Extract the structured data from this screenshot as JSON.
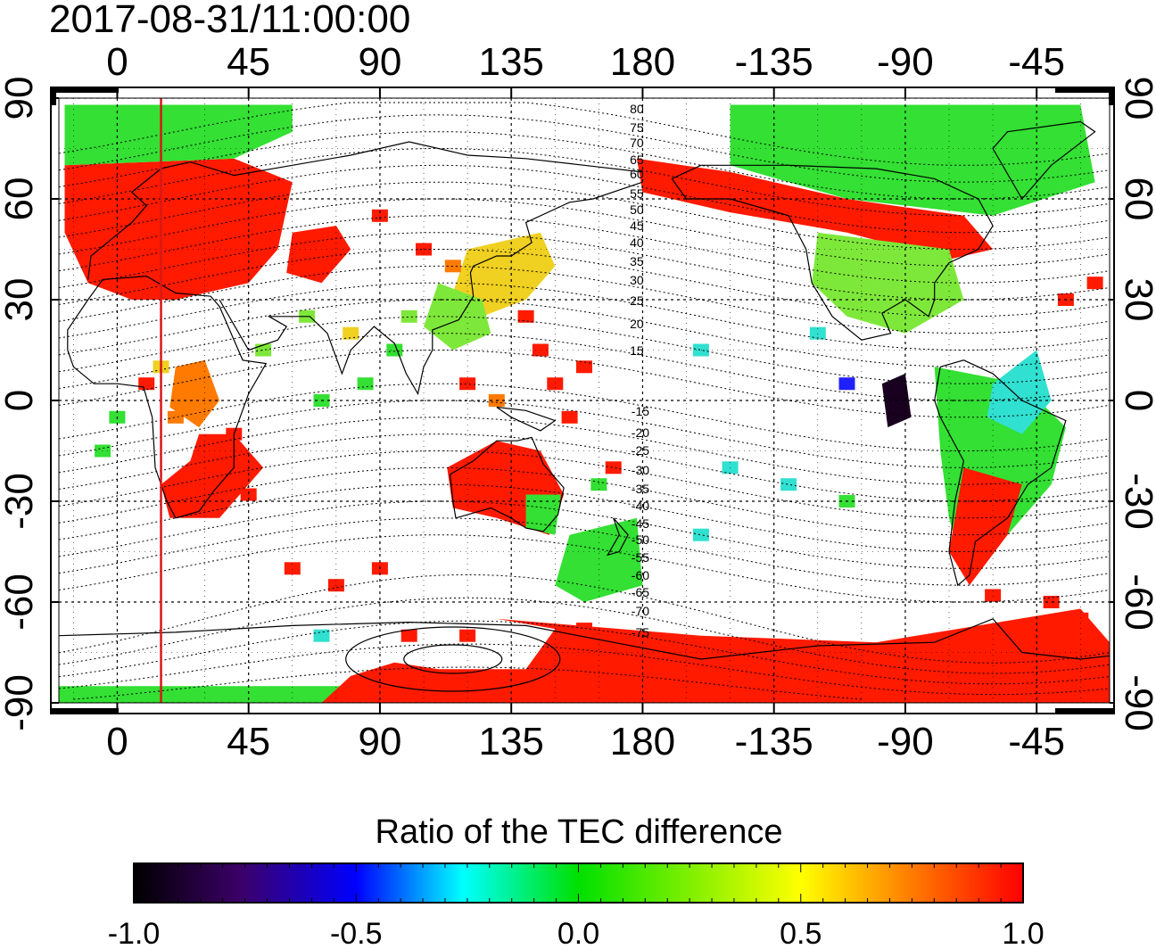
{
  "map": {
    "timestamp": "2017-08-31/11:00:00",
    "projection": "equirectangular",
    "lon_range": [
      -20,
      340
    ],
    "lat_range": [
      -90,
      90
    ],
    "gridlines": "dotted",
    "top_lon_ticks": [
      "0",
      "45",
      "90",
      "135",
      "180",
      "-135",
      "-90",
      "-45"
    ],
    "bottom_lon_ticks": [
      "0",
      "45",
      "90",
      "135",
      "180",
      "-135",
      "-90",
      "-45"
    ],
    "left_lat_ticks": [
      "90",
      "60",
      "30",
      "0",
      "-30",
      "-60",
      "-90"
    ],
    "right_lat_ticks": [
      "90",
      "60",
      "30",
      "0",
      "-30",
      "-60",
      "-90"
    ],
    "terminator_longitude": 15,
    "terminator_color": "#d81818",
    "contour_labels_north": [
      "80",
      "75",
      "70",
      "65",
      "60",
      "55",
      "50",
      "45",
      "40",
      "35",
      "30",
      "25",
      "20",
      "15"
    ],
    "contour_labels_south": [
      "-15",
      "-20",
      "-25",
      "-30",
      "-35",
      "-40",
      "-45",
      "-50",
      "-55",
      "-60",
      "-65",
      "-70",
      "-75"
    ]
  },
  "colorbar": {
    "title": "Ratio of the TEC difference",
    "min": -1.0,
    "max": 1.0,
    "tick_labels": [
      "-1.0",
      "-0.5",
      "0.0",
      "0.5",
      "1.0"
    ],
    "colors": [
      "#000000",
      "#3c0068",
      "#0000ff",
      "#00ffff",
      "#00e000",
      "#ffff00",
      "#ff8000",
      "#ff0000"
    ]
  }
}
